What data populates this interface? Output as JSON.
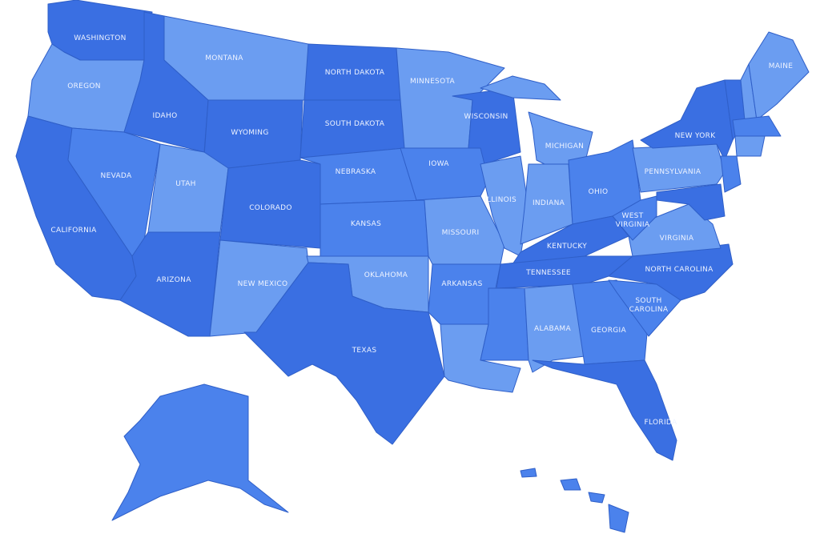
{
  "palette": {
    "dark": "#3a6fe2",
    "medium": "#4b82ec",
    "light": "#6b9df1",
    "border": "#2f5fc8",
    "background": "#ffffff"
  },
  "states": [
    {
      "id": "WA",
      "label": "WASHINGTON",
      "tone": "dark"
    },
    {
      "id": "OR",
      "label": "OREGON",
      "tone": "light"
    },
    {
      "id": "CA",
      "label": "CALIFORNIA",
      "tone": "dark"
    },
    {
      "id": "NV",
      "label": "NEVADA",
      "tone": "medium"
    },
    {
      "id": "ID",
      "label": "IDAHO",
      "tone": "dark"
    },
    {
      "id": "MT",
      "label": "MONTANA",
      "tone": "light"
    },
    {
      "id": "WY",
      "label": "WYOMING",
      "tone": "dark"
    },
    {
      "id": "UT",
      "label": "UTAH",
      "tone": "light"
    },
    {
      "id": "AZ",
      "label": "ARIZONA",
      "tone": "dark"
    },
    {
      "id": "CO",
      "label": "COLORADO",
      "tone": "dark"
    },
    {
      "id": "NM",
      "label": "NEW MEXICO",
      "tone": "light"
    },
    {
      "id": "ND",
      "label": "NORTH DAKOTA",
      "tone": "dark"
    },
    {
      "id": "SD",
      "label": "SOUTH DAKOTA",
      "tone": "dark"
    },
    {
      "id": "NE",
      "label": "NEBRASKA",
      "tone": "medium"
    },
    {
      "id": "KS",
      "label": "KANSAS",
      "tone": "medium"
    },
    {
      "id": "OK",
      "label": "OKLAHOMA",
      "tone": "light"
    },
    {
      "id": "TX",
      "label": "TEXAS",
      "tone": "dark"
    },
    {
      "id": "MN",
      "label": "MINNESOTA",
      "tone": "light"
    },
    {
      "id": "IA",
      "label": "IOWA",
      "tone": "medium"
    },
    {
      "id": "MO",
      "label": "MISSOURI",
      "tone": "light"
    },
    {
      "id": "AR",
      "label": "ARKANSAS",
      "tone": "medium"
    },
    {
      "id": "LA",
      "label": "",
      "tone": "light"
    },
    {
      "id": "WI",
      "label": "WISCONSIN",
      "tone": "dark"
    },
    {
      "id": "IL",
      "label": "ILLINOIS",
      "tone": "light"
    },
    {
      "id": "MI",
      "label": "MICHIGAN",
      "tone": "light"
    },
    {
      "id": "MIU",
      "label": "",
      "tone": "light"
    },
    {
      "id": "IN",
      "label": "INDIANA",
      "tone": "light"
    },
    {
      "id": "OH",
      "label": "OHIO",
      "tone": "medium"
    },
    {
      "id": "KY",
      "label": "KENTUCKY",
      "tone": "dark"
    },
    {
      "id": "TN",
      "label": "TENNESSEE",
      "tone": "dark"
    },
    {
      "id": "MS",
      "label": "",
      "tone": "medium"
    },
    {
      "id": "AL",
      "label": "ALABAMA",
      "tone": "light"
    },
    {
      "id": "GA",
      "label": "GEORGIA",
      "tone": "medium"
    },
    {
      "id": "FL",
      "label": "FLORIDA",
      "tone": "dark"
    },
    {
      "id": "SC",
      "label": "SOUTH CAROLINA",
      "tone": "medium"
    },
    {
      "id": "NC",
      "label": "NORTH CAROLINA",
      "tone": "dark"
    },
    {
      "id": "VA",
      "label": "VIRGINIA",
      "tone": "light"
    },
    {
      "id": "WV",
      "label": "WEST VIRGINIA",
      "tone": "medium"
    },
    {
      "id": "PA",
      "label": "PENNSYLVANIA",
      "tone": "light"
    },
    {
      "id": "NY",
      "label": "NEW YORK",
      "tone": "dark"
    },
    {
      "id": "VT",
      "label": "",
      "tone": "dark"
    },
    {
      "id": "NH",
      "label": "",
      "tone": "light"
    },
    {
      "id": "ME",
      "label": "MAINE",
      "tone": "light"
    },
    {
      "id": "MA",
      "label": "",
      "tone": "medium"
    },
    {
      "id": "CT",
      "label": "",
      "tone": "light"
    },
    {
      "id": "NJ",
      "label": "",
      "tone": "medium"
    },
    {
      "id": "MD",
      "label": "",
      "tone": "dark"
    },
    {
      "id": "AK",
      "label": "",
      "tone": "medium"
    },
    {
      "id": "HI",
      "label": "",
      "tone": "medium"
    }
  ]
}
